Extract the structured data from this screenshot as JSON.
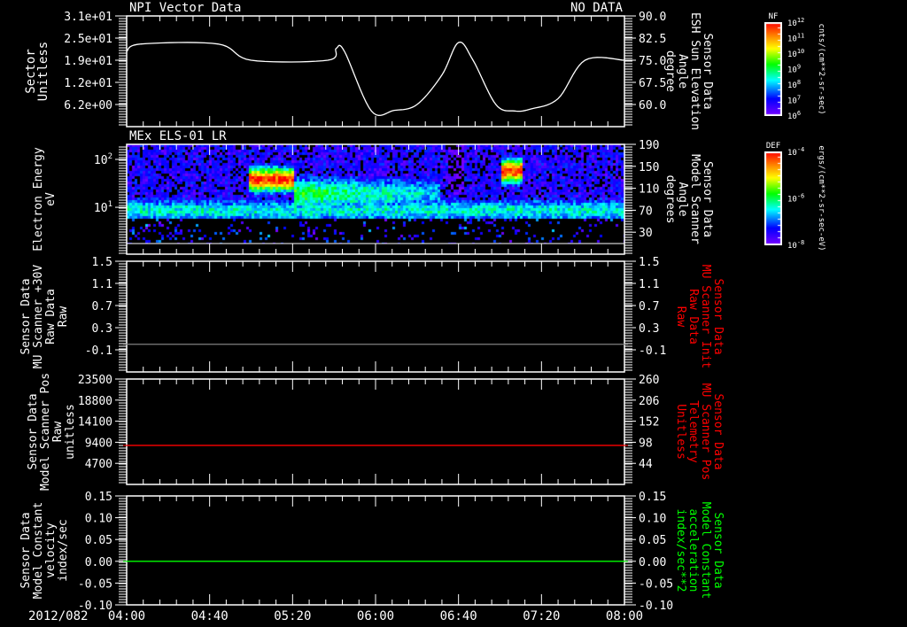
{
  "header": {
    "title": "NPI Vector Data",
    "status": "NO DATA",
    "date": "2012/082"
  },
  "time_axis": {
    "start": "04:00",
    "end": "08:00",
    "labels": [
      "04:00",
      "04:40",
      "05:20",
      "06:00",
      "06:40",
      "07:20",
      "08:00"
    ]
  },
  "colors": {
    "fg": "#ffffff",
    "red": "#ff0000",
    "green": "#00ff00",
    "gray": "#808080"
  },
  "chart_data": [
    {
      "type": "line",
      "title": "NPI Vector Data",
      "ylabel_left": [
        "Sector",
        "Unitless"
      ],
      "ylabel_right": [
        "Sensor Data",
        "ESH Sun Elevation",
        "Angle",
        "degree"
      ],
      "ylim_left": [
        0,
        31
      ],
      "ylim_right": [
        52.5,
        90
      ],
      "left_ticks": [
        {
          "v": 31,
          "t": "3.1e+01"
        },
        {
          "v": 24.8,
          "t": "2.5e+01"
        },
        {
          "v": 18.6,
          "t": "1.9e+01"
        },
        {
          "v": 12.4,
          "t": "1.2e+01"
        },
        {
          "v": 6.2,
          "t": "6.2e+00"
        }
      ],
      "right_ticks": [
        {
          "v": 90,
          "t": "90.0"
        },
        {
          "v": 82.5,
          "t": "82.5"
        },
        {
          "v": 75,
          "t": "75.0"
        },
        {
          "v": 67.5,
          "t": "67.5"
        },
        {
          "v": 60,
          "t": "60.0"
        }
      ],
      "series": [
        {
          "name": "ESH Sun Elevation Angle",
          "axis": "right",
          "color": "#ffffff",
          "x_minutes": [
            0,
            7,
            44,
            60,
            97,
            101,
            105,
            118,
            129,
            140,
            152,
            160,
            167,
            178,
            187,
            195,
            208,
            221,
            240
          ],
          "y": [
            78,
            80.5,
            80.5,
            75,
            75,
            79,
            78,
            57.8,
            58,
            60,
            70,
            81,
            75,
            60,
            57.8,
            58.5,
            62,
            75,
            75
          ]
        }
      ]
    },
    {
      "type": "heatmap",
      "title": "MEx ELS-01 LR",
      "ylabel_left": [
        "Electron Energy",
        "eV"
      ],
      "ylabel_right": [
        "Sensor Data",
        "Model Scanner",
        "Angle",
        "degrees"
      ],
      "yscale_left": "log",
      "ylim_left": [
        1.05,
        206
      ],
      "ylim_right": [
        -10,
        190
      ],
      "left_ticks": [
        {
          "v": 100,
          "t": "10",
          "e": "2"
        },
        {
          "v": 10,
          "t": "10",
          "e": "1"
        }
      ],
      "right_ticks": [
        {
          "v": 190,
          "t": "190"
        },
        {
          "v": 150,
          "t": "150"
        },
        {
          "v": 110,
          "t": "110"
        },
        {
          "v": 70,
          "t": "70"
        },
        {
          "v": 30,
          "t": "30"
        }
      ],
      "features": [
        {
          "from_min": 58,
          "to_min": 80,
          "energy_eV": 40,
          "level": "high"
        },
        {
          "from_min": 80,
          "to_min": 150,
          "energy_eV": 20,
          "level": "medium"
        },
        {
          "from_min": 155,
          "to_min": 162,
          "energy_eV": 20,
          "level": "none"
        },
        {
          "from_min": 180,
          "to_min": 190,
          "energy_eV": 60,
          "level": "high"
        },
        {
          "from_min": 0,
          "to_min": 240,
          "energy_eV": 9,
          "level": "low"
        }
      ]
    },
    {
      "type": "line",
      "ylabel_left": [
        "Sensor Data",
        "MU Scanner +30V",
        "Raw Data",
        "Raw"
      ],
      "ylabel_right": [
        "Sensor Data",
        "MU Scanner Init",
        "Raw Data",
        "Raw"
      ],
      "ylim_left": [
        -0.5,
        1.5
      ],
      "ylim_right": [
        -0.5,
        1.5
      ],
      "left_ticks": [
        {
          "v": 1.5,
          "t": "1.5"
        },
        {
          "v": 1.1,
          "t": "1.1"
        },
        {
          "v": 0.7,
          "t": "0.7"
        },
        {
          "v": 0.3,
          "t": "0.3"
        },
        {
          "v": -0.1,
          "t": "-0.1"
        }
      ],
      "right_ticks": [
        {
          "v": 1.5,
          "t": "1.5"
        },
        {
          "v": 1.1,
          "t": "1.1"
        },
        {
          "v": 0.7,
          "t": "0.7"
        },
        {
          "v": 0.3,
          "t": "0.3"
        },
        {
          "v": -0.1,
          "t": "-0.1"
        }
      ],
      "series": [
        {
          "name": "MU Scanner Init",
          "axis": "right",
          "color": "#808080",
          "x_minutes": [
            0,
            240
          ],
          "y": [
            0,
            0
          ]
        }
      ]
    },
    {
      "type": "line",
      "ylabel_left": [
        "Sensor Data",
        "Model Scanner Pos",
        "Raw",
        "unitless"
      ],
      "ylabel_right": [
        "Sensor Data",
        "MU Scanner Pos",
        "Telemetry",
        "Unitless"
      ],
      "ylim_left": [
        0,
        23500
      ],
      "ylim_right": [
        -10,
        260
      ],
      "left_ticks": [
        {
          "v": 23500,
          "t": "23500"
        },
        {
          "v": 18800,
          "t": "18800"
        },
        {
          "v": 14100,
          "t": "14100"
        },
        {
          "v": 9400,
          "t": "9400"
        },
        {
          "v": 4700,
          "t": "4700"
        }
      ],
      "right_ticks": [
        {
          "v": 260,
          "t": "260"
        },
        {
          "v": 206,
          "t": "206"
        },
        {
          "v": 152,
          "t": "152"
        },
        {
          "v": 98,
          "t": "98"
        },
        {
          "v": 44,
          "t": "44"
        }
      ],
      "series": [
        {
          "name": "MU Scanner Pos",
          "axis": "left",
          "color": "#ff0000",
          "x_minutes": [
            0,
            240
          ],
          "y": [
            8700,
            8700
          ]
        }
      ]
    },
    {
      "type": "line",
      "ylabel_left": [
        "Sensor Data",
        "Model Constant",
        "velocity",
        "index/sec"
      ],
      "ylabel_right": [
        "Sensor Data",
        "Model Constant",
        "acceleration",
        "index/sec**2"
      ],
      "ylim_left": [
        -0.1,
        0.15
      ],
      "ylim_right": [
        -0.1,
        0.15
      ],
      "left_ticks": [
        {
          "v": 0.15,
          "t": "0.15"
        },
        {
          "v": 0.1,
          "t": "0.10"
        },
        {
          "v": 0.05,
          "t": "0.05"
        },
        {
          "v": 0,
          "t": "0.00"
        },
        {
          "v": -0.05,
          "t": "-0.05"
        },
        {
          "v": -0.1,
          "t": "-0.10"
        }
      ],
      "right_ticks": [
        {
          "v": 0.15,
          "t": "0.15"
        },
        {
          "v": 0.1,
          "t": "0.10"
        },
        {
          "v": 0.05,
          "t": "0.05"
        },
        {
          "v": 0,
          "t": "0.00"
        },
        {
          "v": -0.05,
          "t": "-0.05"
        },
        {
          "v": -0.1,
          "t": "-0.10"
        }
      ],
      "series": [
        {
          "name": "Model Constant acceleration",
          "axis": "right",
          "color": "#00ff00",
          "x_minutes": [
            0,
            240
          ],
          "y": [
            0,
            0
          ]
        }
      ]
    }
  ],
  "colorbars": [
    {
      "title": "NF",
      "units": "cnts/(cm**2-sr-sec)",
      "labels": [
        {
          "t": "10",
          "e": "12"
        },
        {
          "t": "10",
          "e": "11"
        },
        {
          "t": "10",
          "e": "10"
        },
        {
          "t": "10",
          "e": "9"
        },
        {
          "t": "10",
          "e": "8"
        },
        {
          "t": "10",
          "e": "7"
        },
        {
          "t": "10",
          "e": "6"
        }
      ]
    },
    {
      "title": "DEF",
      "units": "ergs/(cm**2-sr-sec-eV)",
      "labels": [
        {
          "t": "10",
          "e": "-4"
        },
        {
          "t": "10",
          "e": "-6"
        },
        {
          "t": "10",
          "e": "-8"
        }
      ]
    }
  ]
}
